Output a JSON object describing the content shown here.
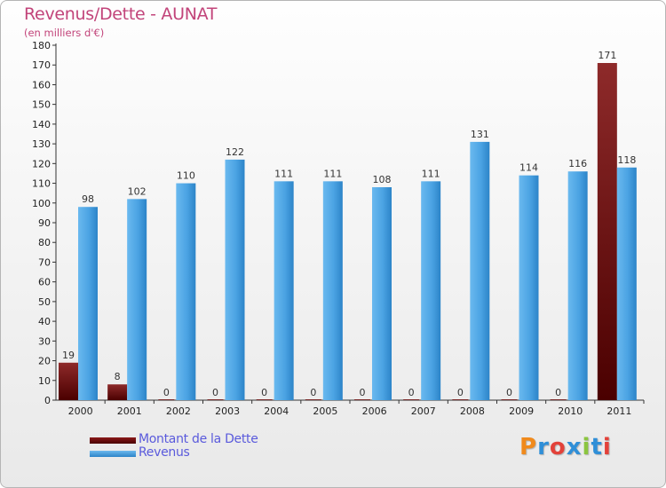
{
  "chart_data": {
    "type": "bar",
    "title": "Revenus/Dette - AUNAT",
    "subtitle": "(en milliers d'€)",
    "xlabel": "",
    "ylabel": "",
    "categories": [
      "2000",
      "2001",
      "2002",
      "2003",
      "2004",
      "2005",
      "2006",
      "2007",
      "2008",
      "2009",
      "2010",
      "2011"
    ],
    "ylim": [
      0,
      180
    ],
    "ytick_step": 10,
    "grid": false,
    "series": [
      {
        "name": "Montant de la Dette",
        "color": "#6b0a0a",
        "values": [
          19,
          8,
          0,
          0,
          0,
          0,
          0,
          0,
          0,
          0,
          0,
          171
        ]
      },
      {
        "name": "Revenus",
        "color": "#4aa0e0",
        "values": [
          98,
          102,
          110,
          122,
          111,
          111,
          108,
          111,
          131,
          114,
          116,
          118
        ]
      }
    ],
    "legend_position": "bottom-left"
  },
  "logo": {
    "text": "Proxiti"
  },
  "colors": {
    "title": "#c2447a",
    "legend_text": "#5a5adc",
    "axis": "#222222"
  }
}
